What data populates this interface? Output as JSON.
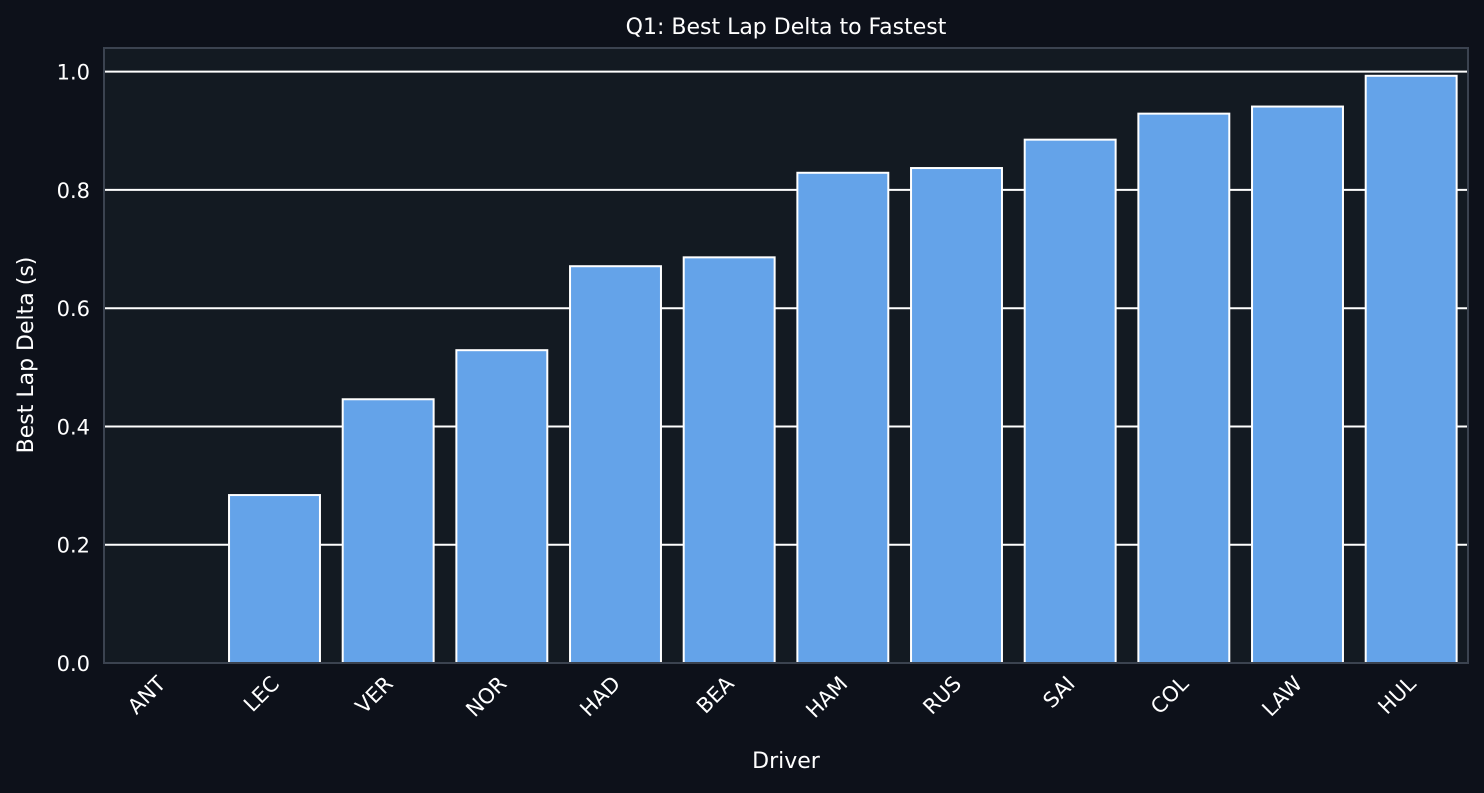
{
  "chart_data": {
    "type": "bar",
    "title": "Q1: Best Lap Delta to Fastest",
    "xlabel": "Driver",
    "ylabel": "Best Lap Delta (s)",
    "categories": [
      "ANT",
      "LEC",
      "VER",
      "NOR",
      "HAD",
      "BEA",
      "HAM",
      "RUS",
      "SAI",
      "COL",
      "LAW",
      "HUL"
    ],
    "values": [
      0.0,
      0.284,
      0.446,
      0.529,
      0.671,
      0.686,
      0.829,
      0.837,
      0.885,
      0.929,
      0.941,
      0.993
    ],
    "ylim": [
      0,
      1.04
    ],
    "yticks": [
      0.0,
      0.2,
      0.4,
      0.6,
      0.8,
      1.0
    ],
    "ytick_labels": [
      "0.0",
      "0.2",
      "0.4",
      "0.6",
      "0.8",
      "1.0"
    ],
    "grid": "y",
    "legend": "none",
    "colors": {
      "bar": "#64a3e9",
      "bar_edge": "#ffffff",
      "plot_background": "#131a22",
      "figure_background": "#0d111a",
      "grid": "#ffffff",
      "frame": "#3b4350",
      "text": "#ffffff"
    }
  }
}
